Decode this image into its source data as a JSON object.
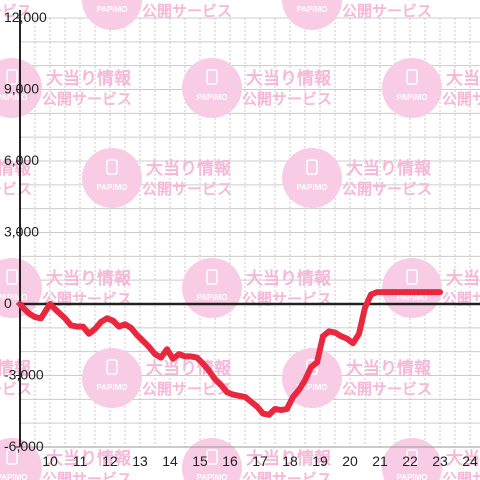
{
  "chart_data": {
    "type": "line",
    "title": "",
    "xlabel": "",
    "ylabel": "",
    "xlim": [
      9,
      24
    ],
    "ylim": [
      -6000,
      12000
    ],
    "x_ticks": [
      10,
      11,
      12,
      13,
      14,
      15,
      16,
      17,
      18,
      19,
      20,
      21,
      22,
      23,
      24
    ],
    "x_tick_labels": [
      "10",
      "11",
      "12",
      "13",
      "14",
      "15",
      "16",
      "17",
      "18",
      "19",
      "20",
      "21",
      "22",
      "23",
      "24"
    ],
    "y_ticks": [
      -6000,
      -3000,
      0,
      3000,
      6000,
      9000,
      12000
    ],
    "y_tick_labels": [
      "-6,000",
      "-3,000",
      "0",
      "3,000",
      "6,000",
      "9,000",
      "12,000"
    ],
    "grid": true,
    "series": [
      {
        "color": "#e8283f",
        "x": [
          9.0,
          9.1,
          9.3,
          9.5,
          9.7,
          9.85,
          10.0,
          10.2,
          10.5,
          10.7,
          10.9,
          11.1,
          11.3,
          11.5,
          11.7,
          11.9,
          12.1,
          12.3,
          12.5,
          12.7,
          12.9,
          13.1,
          13.3,
          13.5,
          13.7,
          13.9,
          14.1,
          14.3,
          14.5,
          14.7,
          14.9,
          15.1,
          15.3,
          15.5,
          15.7,
          15.9,
          16.1,
          16.3,
          16.5,
          16.7,
          16.9,
          17.1,
          17.3,
          17.5,
          17.7,
          17.9,
          18.1,
          18.3,
          18.5,
          18.7,
          18.9,
          19.1,
          19.3,
          19.5,
          19.7,
          19.9,
          20.1,
          20.3,
          20.5,
          20.7,
          20.9,
          21.1,
          21.3,
          21.5,
          21.7,
          21.9,
          22.1,
          22.3,
          22.5,
          22.7,
          22.9,
          23.0
        ],
        "y": [
          0,
          -150,
          -400,
          -550,
          -600,
          -300,
          0,
          -250,
          -600,
          -900,
          -950,
          -950,
          -1250,
          -1050,
          -750,
          -600,
          -700,
          -950,
          -850,
          -1000,
          -1300,
          -1550,
          -1800,
          -2100,
          -2250,
          -1900,
          -2300,
          -2100,
          -2200,
          -2200,
          -2250,
          -2500,
          -2800,
          -3150,
          -3400,
          -3700,
          -3800,
          -3850,
          -3900,
          -4100,
          -4300,
          -4600,
          -4650,
          -4400,
          -4450,
          -4400,
          -3900,
          -3600,
          -3200,
          -2650,
          -2450,
          -1350,
          -1150,
          -1200,
          -1350,
          -1450,
          -1650,
          -1250,
          -150,
          400,
          500,
          500,
          500,
          500,
          500,
          500,
          500,
          500,
          500,
          500,
          500,
          500
        ]
      }
    ]
  },
  "watermark": {
    "line1": "大当り情報",
    "line2": "公開サービス",
    "logo": "PAPIMO"
  }
}
